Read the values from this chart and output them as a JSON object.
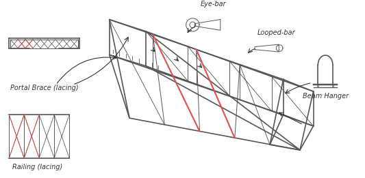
{
  "bg_color": "#ffffff",
  "line_color": "#555555",
  "red_color": "#e05050",
  "dark_color": "#333333",
  "title": "",
  "labels": {
    "portal_brace": "Portal Brace (lacing)",
    "railing": "Railing (lacing)",
    "beam_hanger": "Beam Hanger",
    "looped_bar": "Looped-bar",
    "eye_bar": "Eye-bar"
  },
  "font_size": 7
}
